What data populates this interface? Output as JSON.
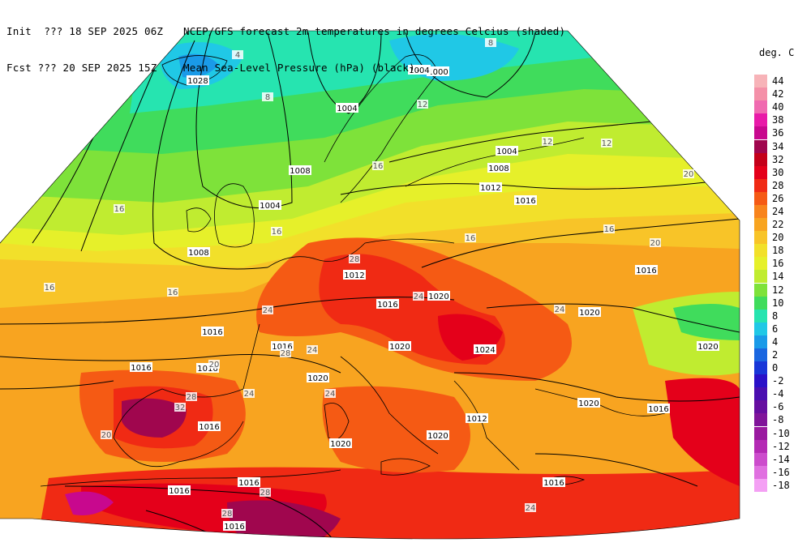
{
  "header": {
    "init_label": "Init  ??? 18 SEP 2025 06Z",
    "fcst_label": "Fcst ??? 20 SEP 2025 15Z",
    "title_line1": "NCEP/GFS forecast 2m temperatures in degrees Celcius (shaded)",
    "title_line2": "Mean Sea-Level Pressure (hPa) (black)."
  },
  "legend": {
    "title": "deg. C",
    "items": [
      {
        "label": "44",
        "color": "#f7b3b8"
      },
      {
        "label": "42",
        "color": "#f490a8"
      },
      {
        "label": "40",
        "color": "#f06ab0"
      },
      {
        "label": "38",
        "color": "#e81aa8"
      },
      {
        "label": "36",
        "color": "#c8088e"
      },
      {
        "label": "34",
        "color": "#a0064e"
      },
      {
        "label": "32",
        "color": "#c4001a"
      },
      {
        "label": "30",
        "color": "#e4001a"
      },
      {
        "label": "28",
        "color": "#f02a14"
      },
      {
        "label": "26",
        "color": "#f55a14"
      },
      {
        "label": "24",
        "color": "#f8841c"
      },
      {
        "label": "22",
        "color": "#f8a420"
      },
      {
        "label": "20",
        "color": "#f8c428"
      },
      {
        "label": "18",
        "color": "#f2e02a"
      },
      {
        "label": "16",
        "color": "#e6f02a"
      },
      {
        "label": "14",
        "color": "#c0ec30"
      },
      {
        "label": "12",
        "color": "#7ee23a"
      },
      {
        "label": "10",
        "color": "#40dc5c"
      },
      {
        "label": "8",
        "color": "#26e4b0"
      },
      {
        "label": "6",
        "color": "#20c8e6"
      },
      {
        "label": "4",
        "color": "#1a9ae8"
      },
      {
        "label": "2",
        "color": "#1a66e0"
      },
      {
        "label": "0",
        "color": "#1836d8"
      },
      {
        "label": "-2",
        "color": "#2a10c8"
      },
      {
        "label": "-4",
        "color": "#4a0eb0"
      },
      {
        "label": "-6",
        "color": "#660ea0"
      },
      {
        "label": "-8",
        "color": "#80149a"
      },
      {
        "label": "-10",
        "color": "#9a1aa0"
      },
      {
        "label": "-12",
        "color": "#b42ab4"
      },
      {
        "label": "-14",
        "color": "#cc4ccc"
      },
      {
        "label": "-16",
        "color": "#e070e0"
      },
      {
        "label": "-18",
        "color": "#f4a0f4"
      }
    ]
  },
  "map": {
    "pressure_labels": [
      "1028",
      "1004",
      "1004",
      "1000",
      "1004",
      "1008",
      "1008",
      "1012",
      "1016",
      "1004",
      "1008",
      "1012",
      "1016",
      "1020",
      "1016",
      "1016",
      "1016",
      "1024",
      "1020",
      "1016",
      "1020",
      "1020",
      "1016",
      "1012",
      "1016",
      "1020",
      "1020",
      "1016",
      "1016",
      "1016",
      "1016",
      "1020",
      "1020",
      "1016"
    ],
    "temperature_labels": [
      "4",
      "8",
      "8",
      "12",
      "12",
      "12",
      "16",
      "16",
      "16",
      "16",
      "20",
      "20",
      "24",
      "24",
      "24",
      "28",
      "28",
      "32",
      "28",
      "20",
      "24",
      "24",
      "28",
      "28",
      "24",
      "24",
      "20",
      "16",
      "16",
      "16"
    ]
  }
}
